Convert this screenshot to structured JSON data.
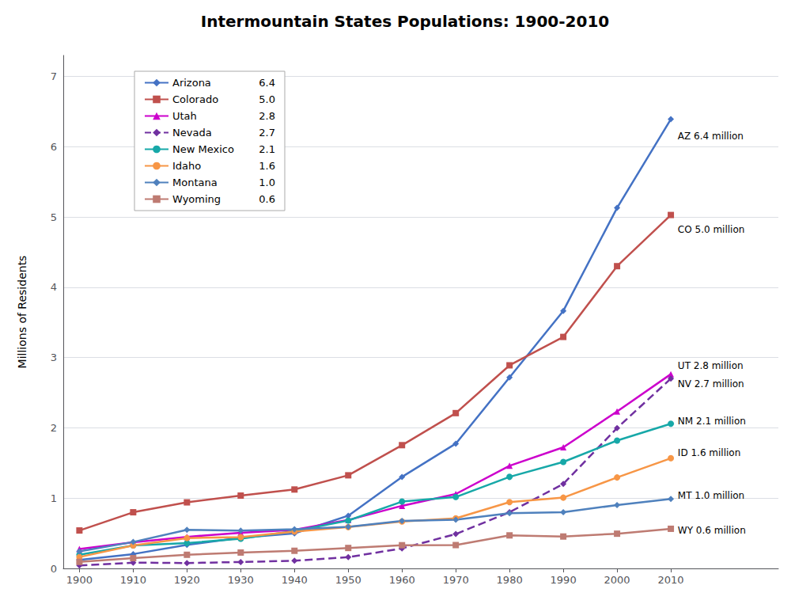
{
  "chart_data": {
    "type": "line",
    "title": "Intermountain States Populations: 1900-2010",
    "ylabel": "Millions of Residents",
    "x": [
      1900,
      1910,
      1920,
      1930,
      1940,
      1950,
      1960,
      1970,
      1980,
      1990,
      2000,
      2010
    ],
    "series": [
      {
        "name": "Arizona",
        "color": "#4472C4",
        "marker": "diamond",
        "line_style": "solid",
        "legend_value": "6.4",
        "values": [
          0.122,
          0.204,
          0.334,
          0.436,
          0.499,
          0.75,
          1.302,
          1.775,
          2.718,
          3.665,
          5.13,
          6.392
        ]
      },
      {
        "name": "Colorado",
        "color": "#C0504D",
        "marker": "square",
        "line_style": "solid",
        "legend_value": "5.0",
        "values": [
          0.54,
          0.799,
          0.94,
          1.036,
          1.123,
          1.325,
          1.754,
          2.21,
          2.89,
          3.294,
          4.301,
          5.029
        ]
      },
      {
        "name": "Utah",
        "color": "#CC00CC",
        "marker": "triangle",
        "line_style": "solid",
        "legend_value": "2.8",
        "values": [
          0.277,
          0.373,
          0.449,
          0.508,
          0.55,
          0.689,
          0.891,
          1.059,
          1.461,
          1.723,
          2.233,
          2.764
        ]
      },
      {
        "name": "Nevada",
        "color": "#7030A0",
        "marker": "diamond",
        "line_style": "dashed",
        "legend_value": "2.7",
        "values": [
          0.042,
          0.082,
          0.077,
          0.091,
          0.11,
          0.16,
          0.285,
          0.489,
          0.8,
          1.202,
          1.998,
          2.701
        ]
      },
      {
        "name": "New Mexico",
        "color": "#17A8A8",
        "marker": "circle",
        "line_style": "solid",
        "legend_value": "2.1",
        "values": [
          0.195,
          0.327,
          0.36,
          0.423,
          0.532,
          0.681,
          0.951,
          1.016,
          1.303,
          1.515,
          1.819,
          2.059
        ]
      },
      {
        "name": "Idaho",
        "color": "#F79646",
        "marker": "circle",
        "line_style": "solid",
        "legend_value": "1.6",
        "values": [
          0.162,
          0.326,
          0.432,
          0.445,
          0.525,
          0.588,
          0.667,
          0.713,
          0.944,
          1.007,
          1.294,
          1.568
        ]
      },
      {
        "name": "Montana",
        "color": "#4f81bd",
        "marker": "diamond",
        "line_style": "solid",
        "legend_value": "1.0",
        "values": [
          0.243,
          0.376,
          0.549,
          0.538,
          0.559,
          0.591,
          0.675,
          0.694,
          0.787,
          0.799,
          0.902,
          0.989
        ]
      },
      {
        "name": "Wyoming",
        "color": "#BE7B72",
        "marker": "square",
        "line_style": "solid",
        "legend_value": "0.6",
        "values": [
          0.093,
          0.146,
          0.194,
          0.226,
          0.251,
          0.291,
          0.33,
          0.332,
          0.47,
          0.454,
          0.494,
          0.564
        ]
      }
    ],
    "annotations": [
      {
        "series": "Arizona",
        "x": 2011,
        "y": 6.15,
        "text": "AZ 6.4 million"
      },
      {
        "series": "Colorado",
        "x": 2011,
        "y": 4.82,
        "text": "CO 5.0 million"
      },
      {
        "series": "Utah",
        "x": 2011,
        "y": 2.88,
        "text": "UT 2.8 million"
      },
      {
        "series": "Nevada",
        "x": 2011,
        "y": 2.62,
        "text": "NV 2.7 million"
      },
      {
        "series": "New Mexico",
        "x": 2011,
        "y": 2.1,
        "text": "NM 2.1 million"
      },
      {
        "series": "Idaho",
        "x": 2011,
        "y": 1.64,
        "text": "ID 1.6 million"
      },
      {
        "series": "Montana",
        "x": 2011,
        "y": 1.04,
        "text": "MT 1.0 million"
      },
      {
        "series": "Wyoming",
        "x": 2011,
        "y": 0.54,
        "text": "WY 0.6 million"
      }
    ],
    "xlim": [
      1897,
      2030
    ],
    "xticks": [
      1900,
      1910,
      1920,
      1930,
      1940,
      1950,
      1960,
      1970,
      1980,
      1990,
      2000,
      2010
    ],
    "ylim": [
      0,
      7.3
    ],
    "yticks": [
      0,
      1,
      2,
      3,
      4,
      5,
      6,
      7
    ],
    "grid": true,
    "legend": "upper left"
  }
}
